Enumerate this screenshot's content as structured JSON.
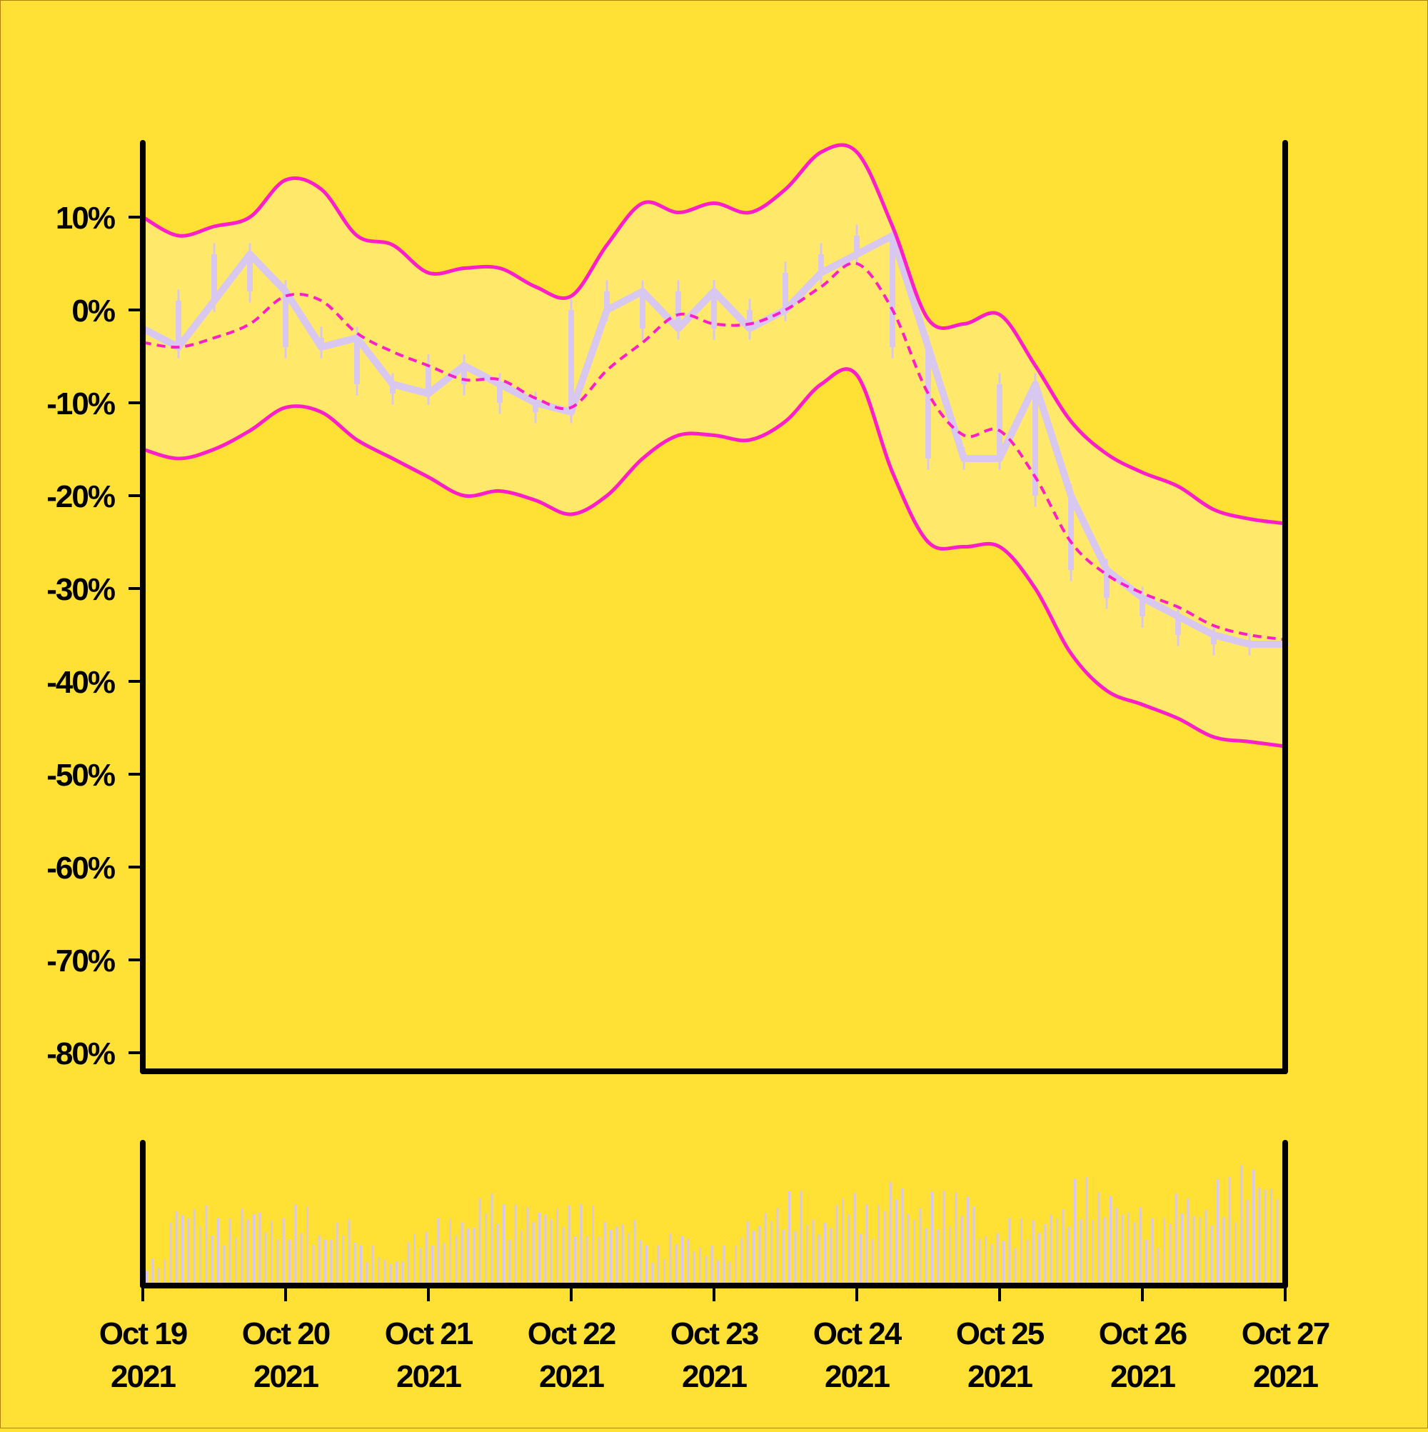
{
  "colors": {
    "background": "#ffe135",
    "band_fill": "#ffe86a",
    "band_line": "#ff1ec8",
    "price": "#d8c8f0",
    "volume": "#d8c8f0",
    "axis": "#000000"
  },
  "chart_data": {
    "type": "line",
    "title": "",
    "xlabel": "",
    "ylabel": "",
    "ylim": [
      -80,
      17
    ],
    "y_tick_labels": [
      "10%",
      "0%",
      "-10%",
      "-20%",
      "-30%",
      "-40%",
      "-50%",
      "-60%",
      "-70%",
      "-80%"
    ],
    "y_ticks": [
      10,
      0,
      -10,
      -20,
      -30,
      -40,
      -50,
      -60,
      -70,
      -80
    ],
    "x_range": [
      "2021-10-19",
      "2021-10-27"
    ],
    "x_ticks": [
      {
        "date": "2021-10-19",
        "line1": "Oct 19",
        "line2": "2021"
      },
      {
        "date": "2021-10-20",
        "line1": "Oct 20",
        "line2": "2021"
      },
      {
        "date": "2021-10-21",
        "line1": "Oct 21",
        "line2": "2021"
      },
      {
        "date": "2021-10-22",
        "line1": "Oct 22",
        "line2": "2021"
      },
      {
        "date": "2021-10-23",
        "line1": "Oct 23",
        "line2": "2021"
      },
      {
        "date": "2021-10-24",
        "line1": "Oct 24",
        "line2": "2021"
      },
      {
        "date": "2021-10-25",
        "line1": "Oct 25",
        "line2": "2021"
      },
      {
        "date": "2021-10-26",
        "line1": "Oct 26",
        "line2": "2021"
      },
      {
        "date": "2021-10-27",
        "line1": "Oct 27",
        "line2": "2021"
      }
    ],
    "x": [
      "2021-10-19 00:00",
      "2021-10-19 06:00",
      "2021-10-19 12:00",
      "2021-10-19 18:00",
      "2021-10-20 00:00",
      "2021-10-20 06:00",
      "2021-10-20 12:00",
      "2021-10-20 18:00",
      "2021-10-21 00:00",
      "2021-10-21 06:00",
      "2021-10-21 12:00",
      "2021-10-21 18:00",
      "2021-10-22 00:00",
      "2021-10-22 06:00",
      "2021-10-22 12:00",
      "2021-10-22 18:00",
      "2021-10-23 00:00",
      "2021-10-23 06:00",
      "2021-10-23 12:00",
      "2021-10-23 18:00",
      "2021-10-24 00:00",
      "2021-10-24 06:00",
      "2021-10-24 12:00",
      "2021-10-24 18:00",
      "2021-10-25 00:00",
      "2021-10-25 06:00",
      "2021-10-25 12:00",
      "2021-10-25 18:00",
      "2021-10-26 00:00",
      "2021-10-26 06:00",
      "2021-10-26 12:00",
      "2021-10-26 18:00",
      "2021-10-27 00:00"
    ],
    "series": [
      {
        "role": "price",
        "style": "candles",
        "values": [
          -2,
          -4,
          1,
          6,
          2,
          -4,
          -3,
          -8,
          -9,
          -6,
          -8,
          -10,
          -11,
          0,
          2,
          -2,
          2,
          -2,
          0,
          4,
          6,
          8,
          -4,
          -16,
          -16,
          -8,
          -20,
          -28,
          -31,
          -33,
          -35,
          -36,
          -36
        ]
      },
      {
        "role": "band-middle",
        "style": "dashed",
        "values": [
          -3.5,
          -4,
          -3,
          -1.5,
          1.5,
          1,
          -2.5,
          -4.5,
          -6,
          -7.5,
          -7.5,
          -9.5,
          -10.5,
          -6.5,
          -3.5,
          -0.5,
          -1.5,
          -1.5,
          0,
          2.5,
          5,
          0,
          -9,
          -13.5,
          -13,
          -18,
          -25,
          -28.5,
          -30.5,
          -32,
          -34,
          -35,
          -35.5
        ]
      },
      {
        "role": "band-upper",
        "style": "solid",
        "values": [
          10,
          8,
          9,
          10,
          14,
          13,
          8,
          7,
          4,
          4.5,
          4.5,
          2.5,
          1.5,
          7,
          11.5,
          10.5,
          11.5,
          10.5,
          13,
          17,
          17,
          9,
          -1,
          -1.5,
          -0.5,
          -6,
          -12,
          -15.5,
          -17.5,
          -19,
          -21.5,
          -22.5,
          -23
        ]
      },
      {
        "role": "band-lower",
        "style": "solid",
        "values": [
          -15,
          -16,
          -15,
          -13,
          -10.5,
          -11,
          -14,
          -16,
          -18,
          -20,
          -19.5,
          -20.5,
          -22,
          -20,
          -16,
          -13.5,
          -13.5,
          -14,
          -12,
          -8,
          -7,
          -17.5,
          -25,
          -25.5,
          -25.5,
          -30,
          -37,
          -41,
          -42.5,
          -44,
          -46,
          -46.5,
          -47
        ]
      }
    ],
    "volume": {
      "values": [
        2,
        6,
        6,
        5,
        6,
        5,
        6,
        4,
        5,
        3,
        2,
        4,
        5,
        5,
        7,
        6,
        6,
        6,
        6,
        5,
        5,
        3,
        4,
        3,
        3,
        5,
        6,
        7,
        5,
        7,
        6,
        8,
        6,
        7,
        7,
        4,
        5,
        5,
        6,
        8,
        7,
        6,
        5,
        7,
        6,
        8,
        9,
        8
      ]
    },
    "legend": "none"
  }
}
